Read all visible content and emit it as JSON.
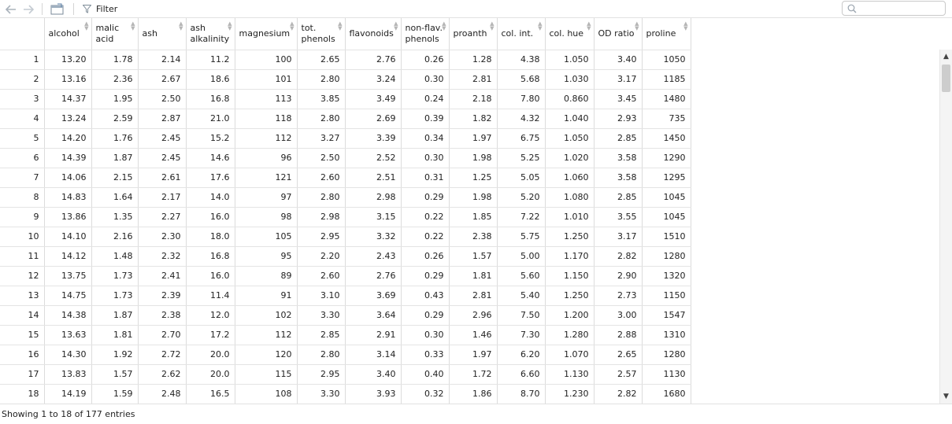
{
  "toolbar": {
    "back_icon": "back-arrow-icon",
    "forward_icon": "forward-arrow-icon",
    "newwindow_icon": "new-window-icon",
    "filter_label": "Filter",
    "search_placeholder": ""
  },
  "table": {
    "columns": [
      {
        "label1": "alcohol",
        "label2": ""
      },
      {
        "label1": "malic",
        "label2": "acid"
      },
      {
        "label1": "ash",
        "label2": ""
      },
      {
        "label1": "ash",
        "label2": "alkalinity"
      },
      {
        "label1": "magnesium",
        "label2": ""
      },
      {
        "label1": "tot.",
        "label2": "phenols"
      },
      {
        "label1": "flavonoids",
        "label2": ""
      },
      {
        "label1": "non-flav.",
        "label2": "phenols"
      },
      {
        "label1": "proanth",
        "label2": ""
      },
      {
        "label1": "col. int.",
        "label2": ""
      },
      {
        "label1": "col. hue",
        "label2": ""
      },
      {
        "label1": "OD ratio",
        "label2": ""
      },
      {
        "label1": "proline",
        "label2": ""
      }
    ],
    "rows": [
      [
        "1",
        "13.20",
        "1.78",
        "2.14",
        "11.2",
        "100",
        "2.65",
        "2.76",
        "0.26",
        "1.28",
        "4.38",
        "1.050",
        "3.40",
        "1050"
      ],
      [
        "2",
        "13.16",
        "2.36",
        "2.67",
        "18.6",
        "101",
        "2.80",
        "3.24",
        "0.30",
        "2.81",
        "5.68",
        "1.030",
        "3.17",
        "1185"
      ],
      [
        "3",
        "14.37",
        "1.95",
        "2.50",
        "16.8",
        "113",
        "3.85",
        "3.49",
        "0.24",
        "2.18",
        "7.80",
        "0.860",
        "3.45",
        "1480"
      ],
      [
        "4",
        "13.24",
        "2.59",
        "2.87",
        "21.0",
        "118",
        "2.80",
        "2.69",
        "0.39",
        "1.82",
        "4.32",
        "1.040",
        "2.93",
        "735"
      ],
      [
        "5",
        "14.20",
        "1.76",
        "2.45",
        "15.2",
        "112",
        "3.27",
        "3.39",
        "0.34",
        "1.97",
        "6.75",
        "1.050",
        "2.85",
        "1450"
      ],
      [
        "6",
        "14.39",
        "1.87",
        "2.45",
        "14.6",
        "96",
        "2.50",
        "2.52",
        "0.30",
        "1.98",
        "5.25",
        "1.020",
        "3.58",
        "1290"
      ],
      [
        "7",
        "14.06",
        "2.15",
        "2.61",
        "17.6",
        "121",
        "2.60",
        "2.51",
        "0.31",
        "1.25",
        "5.05",
        "1.060",
        "3.58",
        "1295"
      ],
      [
        "8",
        "14.83",
        "1.64",
        "2.17",
        "14.0",
        "97",
        "2.80",
        "2.98",
        "0.29",
        "1.98",
        "5.20",
        "1.080",
        "2.85",
        "1045"
      ],
      [
        "9",
        "13.86",
        "1.35",
        "2.27",
        "16.0",
        "98",
        "2.98",
        "3.15",
        "0.22",
        "1.85",
        "7.22",
        "1.010",
        "3.55",
        "1045"
      ],
      [
        "10",
        "14.10",
        "2.16",
        "2.30",
        "18.0",
        "105",
        "2.95",
        "3.32",
        "0.22",
        "2.38",
        "5.75",
        "1.250",
        "3.17",
        "1510"
      ],
      [
        "11",
        "14.12",
        "1.48",
        "2.32",
        "16.8",
        "95",
        "2.20",
        "2.43",
        "0.26",
        "1.57",
        "5.00",
        "1.170",
        "2.82",
        "1280"
      ],
      [
        "12",
        "13.75",
        "1.73",
        "2.41",
        "16.0",
        "89",
        "2.60",
        "2.76",
        "0.29",
        "1.81",
        "5.60",
        "1.150",
        "2.90",
        "1320"
      ],
      [
        "13",
        "14.75",
        "1.73",
        "2.39",
        "11.4",
        "91",
        "3.10",
        "3.69",
        "0.43",
        "2.81",
        "5.40",
        "1.250",
        "2.73",
        "1150"
      ],
      [
        "14",
        "14.38",
        "1.87",
        "2.38",
        "12.0",
        "102",
        "3.30",
        "3.64",
        "0.29",
        "2.96",
        "7.50",
        "1.200",
        "3.00",
        "1547"
      ],
      [
        "15",
        "13.63",
        "1.81",
        "2.70",
        "17.2",
        "112",
        "2.85",
        "2.91",
        "0.30",
        "1.46",
        "7.30",
        "1.280",
        "2.88",
        "1310"
      ],
      [
        "16",
        "14.30",
        "1.92",
        "2.72",
        "20.0",
        "120",
        "2.80",
        "3.14",
        "0.33",
        "1.97",
        "6.20",
        "1.070",
        "2.65",
        "1280"
      ],
      [
        "17",
        "13.83",
        "1.57",
        "2.62",
        "20.0",
        "115",
        "2.95",
        "3.40",
        "0.40",
        "1.72",
        "6.60",
        "1.130",
        "2.57",
        "1130"
      ],
      [
        "18",
        "14.19",
        "1.59",
        "2.48",
        "16.5",
        "108",
        "3.30",
        "3.93",
        "0.32",
        "1.86",
        "8.70",
        "1.230",
        "2.82",
        "1680"
      ]
    ]
  },
  "footer": {
    "status": "Showing 1 to 18 of 177 entries"
  }
}
